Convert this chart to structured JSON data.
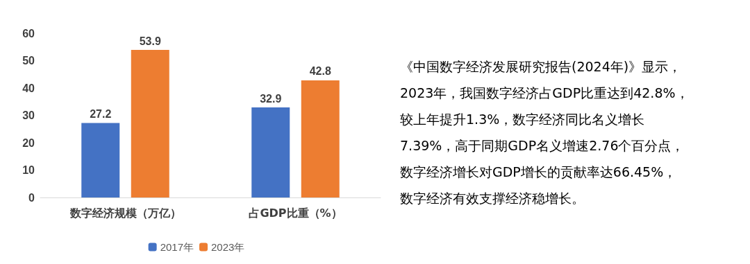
{
  "chart_data": {
    "type": "bar",
    "categories": [
      "数字经济规模（万亿）",
      "占GDP比重（%）"
    ],
    "series": [
      {
        "name": "2017年",
        "color": "#4472c4",
        "values": [
          27.2,
          32.9
        ]
      },
      {
        "name": "2023年",
        "color": "#ed7d31",
        "values": [
          53.9,
          42.8
        ]
      }
    ],
    "ylim": [
      0,
      60
    ],
    "yticks": [
      0,
      10,
      20,
      30,
      40,
      50,
      60
    ],
    "grid": false,
    "legend": "bottom",
    "data_labels": true,
    "annotations": [
      "《中国数字经济发展研究报告(2024年)》显示，",
      "2023年，我国数字经济占GDP比重达到42.8%，",
      "较上年提升1.3%，数字经济同比名义增长",
      "7.39%，高于同期GDP名义增速2.76个百分点，",
      "数字经济增长对GDP增长的贡献率达66.45%，",
      "数字经济有效支撑经济稳增长。"
    ]
  }
}
